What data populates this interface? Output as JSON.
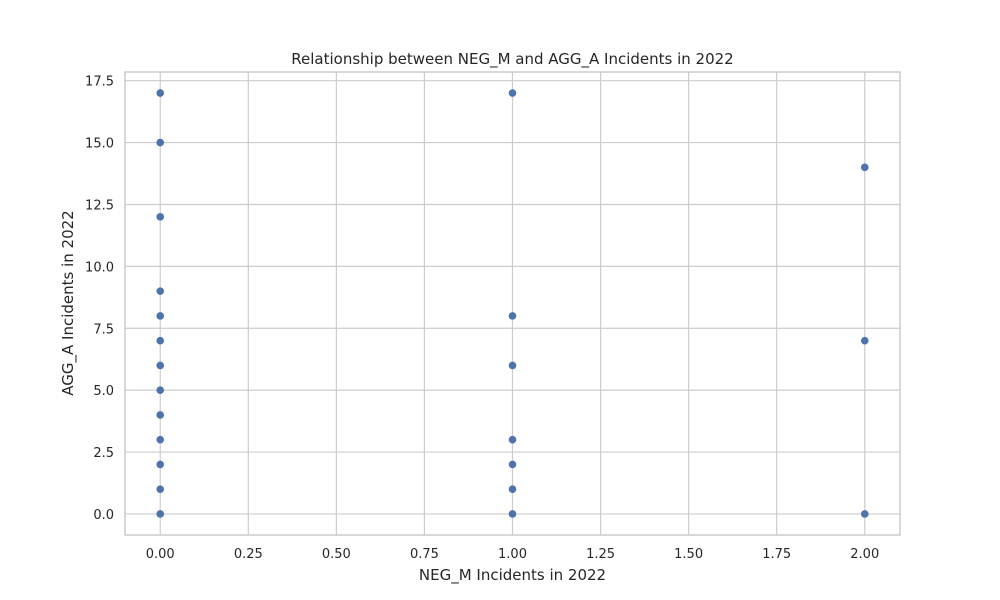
{
  "chart_data": {
    "type": "scatter",
    "title": "Relationship between NEG_M and AGG_A Incidents in 2022",
    "xlabel": "NEG_M Incidents in 2022",
    "ylabel": "AGG_A Incidents in 2022",
    "xlim": [
      -0.1,
      2.1
    ],
    "ylim": [
      -0.85,
      17.85
    ],
    "xticks": [
      "0.00",
      "0.25",
      "0.50",
      "0.75",
      "1.00",
      "1.25",
      "1.50",
      "1.75",
      "2.00"
    ],
    "yticks": [
      "0.0",
      "2.5",
      "5.0",
      "7.5",
      "10.0",
      "12.5",
      "15.0",
      "17.5"
    ],
    "grid": true,
    "point_color": "#4c72b0",
    "series": [
      {
        "x": [
          0,
          0,
          0,
          0,
          0,
          0,
          0,
          0,
          0,
          0,
          0,
          0,
          0,
          1,
          1,
          1,
          1,
          1,
          1,
          1,
          2,
          2,
          2
        ],
        "y": [
          0,
          1,
          2,
          3,
          4,
          5,
          6,
          7,
          8,
          9,
          12,
          15,
          17,
          0,
          1,
          2,
          3,
          6,
          8,
          17,
          0,
          7,
          14
        ]
      }
    ]
  }
}
